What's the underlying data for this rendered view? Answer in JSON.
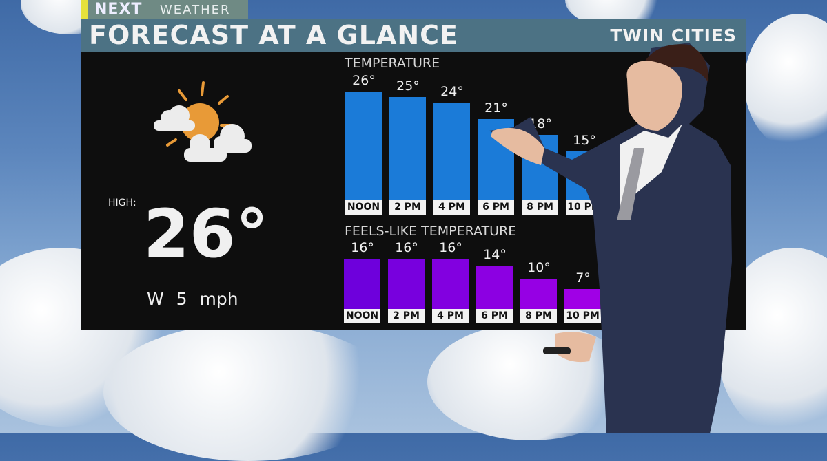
{
  "brand": {
    "logo": "NEXT",
    "section": "WEATHER",
    "accent": "#e6e13a"
  },
  "header": {
    "title": "FORECAST AT A GLANCE",
    "location": "TWIN CITIES"
  },
  "summary": {
    "icon": "partly-sunny-icon",
    "high_label": "HIGH:",
    "high_value": "26°",
    "wind": "W 5 mph"
  },
  "chart_data": [
    {
      "type": "bar",
      "title": "TEMPERATURE",
      "categories": [
        "NOON",
        "2 PM",
        "4 PM",
        "6 PM",
        "8 PM",
        "10 PM"
      ],
      "values": [
        26,
        25,
        24,
        21,
        18,
        15
      ],
      "labels": [
        "26°",
        "25°",
        "24°",
        "21°",
        "18°",
        "15°"
      ],
      "color": "#1b7bd8"
    },
    {
      "type": "bar",
      "title": "FEELS-LIKE TEMPERATURE",
      "categories": [
        "NOON",
        "2 PM",
        "4 PM",
        "6 PM",
        "8 PM",
        "10 PM"
      ],
      "values": [
        16,
        16,
        16,
        14,
        10,
        7
      ],
      "labels": [
        "16°",
        "16°",
        "16°",
        "14°",
        "10°",
        "7°"
      ],
      "color": "#6e00dc"
    }
  ]
}
